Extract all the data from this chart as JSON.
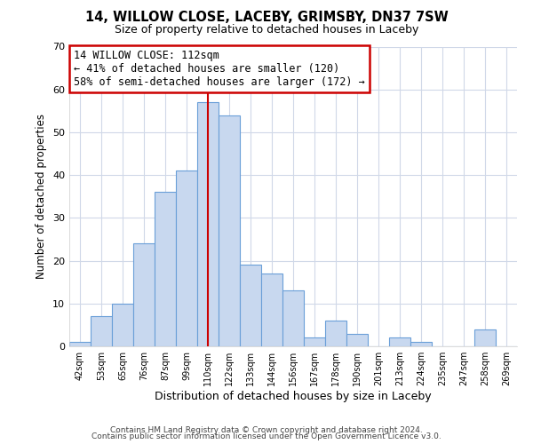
{
  "title": "14, WILLOW CLOSE, LACEBY, GRIMSBY, DN37 7SW",
  "subtitle": "Size of property relative to detached houses in Laceby",
  "xlabel": "Distribution of detached houses by size in Laceby",
  "ylabel": "Number of detached properties",
  "bin_labels": [
    "42sqm",
    "53sqm",
    "65sqm",
    "76sqm",
    "87sqm",
    "99sqm",
    "110sqm",
    "122sqm",
    "133sqm",
    "144sqm",
    "156sqm",
    "167sqm",
    "178sqm",
    "190sqm",
    "201sqm",
    "213sqm",
    "224sqm",
    "235sqm",
    "247sqm",
    "258sqm",
    "269sqm"
  ],
  "bar_heights": [
    1,
    7,
    10,
    24,
    36,
    41,
    57,
    54,
    19,
    17,
    13,
    2,
    6,
    3,
    0,
    2,
    1,
    0,
    0,
    4,
    0
  ],
  "bar_color": "#c8d8ef",
  "bar_edge_color": "#6a9fd8",
  "vline_x_idx": 6,
  "vline_color": "#cc0000",
  "ylim": [
    0,
    70
  ],
  "yticks": [
    0,
    10,
    20,
    30,
    40,
    50,
    60,
    70
  ],
  "annotation_title": "14 WILLOW CLOSE: 112sqm",
  "annotation_line1": "← 41% of detached houses are smaller (120)",
  "annotation_line2": "58% of semi-detached houses are larger (172) →",
  "annotation_box_color": "#ffffff",
  "annotation_box_edge": "#cc0000",
  "footer1": "Contains HM Land Registry data © Crown copyright and database right 2024.",
  "footer2": "Contains public sector information licensed under the Open Government Licence v3.0.",
  "background_color": "#ffffff",
  "plot_bg_color": "#ffffff",
  "grid_color": "#d0d8e8"
}
